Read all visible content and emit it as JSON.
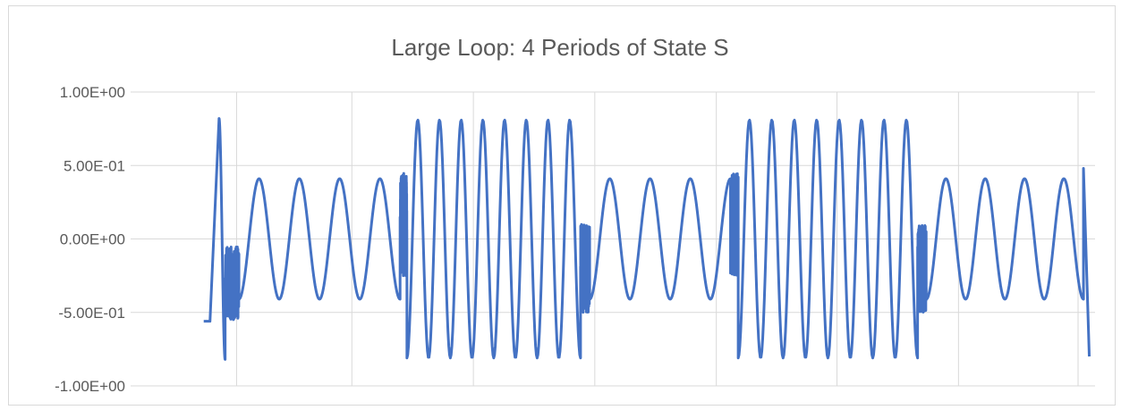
{
  "chart_data": {
    "type": "line",
    "title": "Large Loop: 4 Periods of State S",
    "xlabel": "",
    "ylabel": "",
    "ylim": [
      -1.0,
      1.0
    ],
    "y_ticks": [
      {
        "value": 1.0,
        "label": "1.00E+00"
      },
      {
        "value": 0.5,
        "label": "5.00E-01"
      },
      {
        "value": 0.0,
        "label": "0.00E+00"
      },
      {
        "value": -0.5,
        "label": "-5.00E-01"
      },
      {
        "value": -1.0,
        "label": "-1.00E+00"
      }
    ],
    "x_range": [
      0,
      1
    ],
    "x_gridlines": [
      0.1099,
      0.2294,
      0.3554,
      0.4813,
      0.6073,
      0.7324,
      0.8584,
      0.9824
    ],
    "grid": true,
    "legend": "none",
    "series_color": "#4472c4",
    "series": [
      {
        "segments": [
          {
            "x0": 0.0758,
            "x1": 0.0823,
            "amp": 0.0,
            "periods": 0.0,
            "offset": -0.56,
            "phase": 0
          },
          {
            "x0": 0.0823,
            "x1": 0.0917,
            "amp": 0.0,
            "periods": 0.0,
            "offset": -0.56,
            "phase": 0,
            "ramp_to": 0.82
          },
          {
            "x0": 0.0917,
            "x1": 0.098,
            "amp": 0.82,
            "periods": 0.5,
            "offset": 0.0,
            "phase": 90
          },
          {
            "x0": 0.098,
            "x1": 0.1123,
            "amp": 0.0,
            "periods": 0.0,
            "offset": -0.3,
            "phase": 0,
            "noise": 0.25
          },
          {
            "x0": 0.1123,
            "x1": 0.2794,
            "amp": 0.41,
            "periods": 4.0,
            "offset": 0.0,
            "phase": -90
          },
          {
            "x0": 0.2794,
            "x1": 0.2865,
            "amp": 0.0,
            "periods": 0.0,
            "offset": 0.1,
            "phase": 0,
            "noise": 0.35
          },
          {
            "x0": 0.2865,
            "x1": 0.4665,
            "amp": 0.81,
            "periods": 8.0,
            "offset": 0.0,
            "phase": -90
          },
          {
            "x0": 0.4665,
            "x1": 0.476,
            "amp": 0.0,
            "periods": 0.0,
            "offset": -0.2,
            "phase": 0,
            "noise": 0.3
          },
          {
            "x0": 0.476,
            "x1": 0.622,
            "amp": 0.41,
            "periods": 3.5,
            "offset": 0.0,
            "phase": -90
          },
          {
            "x0": 0.622,
            "x1": 0.63,
            "amp": 0.0,
            "periods": 0.0,
            "offset": 0.1,
            "phase": 0,
            "noise": 0.35
          },
          {
            "x0": 0.63,
            "x1": 0.816,
            "amp": 0.81,
            "periods": 8.0,
            "offset": 0.0,
            "phase": -90
          },
          {
            "x0": 0.816,
            "x1": 0.825,
            "amp": 0.0,
            "periods": 0.0,
            "offset": -0.2,
            "phase": 0,
            "noise": 0.3
          },
          {
            "x0": 0.825,
            "x1": 0.988,
            "amp": 0.41,
            "periods": 4.0,
            "offset": 0.0,
            "phase": -90
          },
          {
            "x0": 0.988,
            "x1": 0.994,
            "amp": 0.0,
            "periods": 0.0,
            "offset": 0.48,
            "phase": 0,
            "ramp_to": -0.8
          }
        ]
      }
    ]
  }
}
